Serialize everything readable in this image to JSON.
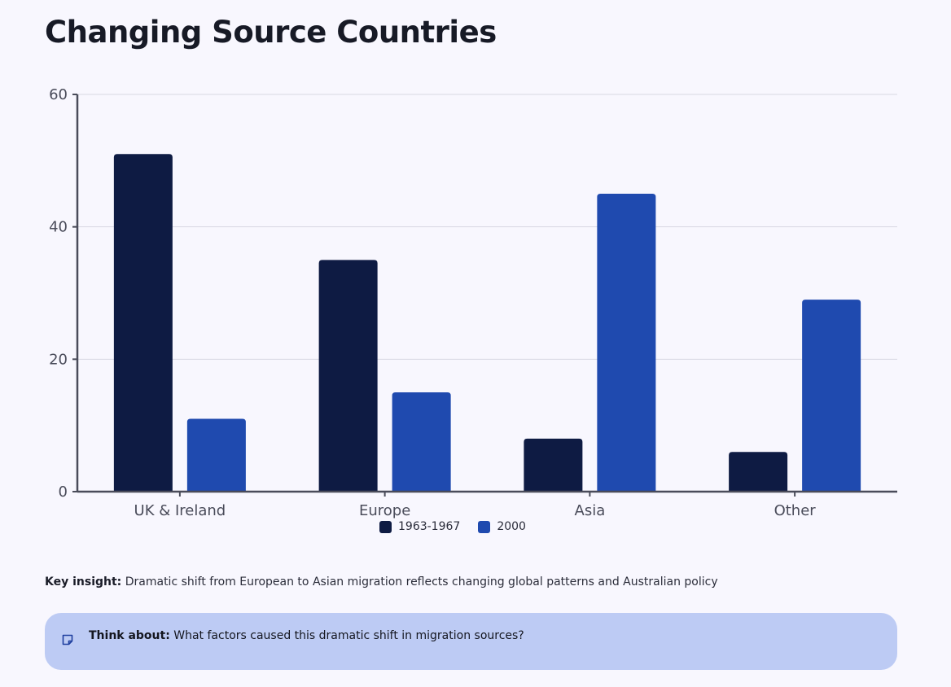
{
  "page": {
    "title": "Changing Source Countries"
  },
  "chart_data": {
    "type": "bar",
    "title": "Changing Source Countries",
    "categories": [
      "UK & Ireland",
      "Europe",
      "Asia",
      "Other"
    ],
    "series": [
      {
        "name": "1963-1967",
        "values": [
          51,
          35,
          8,
          6
        ],
        "color": "#0e1b43"
      },
      {
        "name": "2000",
        "values": [
          11,
          15,
          45,
          29
        ],
        "color": "#1f4aaf"
      }
    ],
    "ylim": [
      0,
      60
    ],
    "yticks": [
      0,
      20,
      40,
      60
    ],
    "xlabel": "",
    "ylabel": "",
    "grid": true,
    "legend_position": "bottom-center"
  },
  "insight": {
    "label": "Key insight:",
    "text": "Dramatic shift from European to Asian migration reflects changing global patterns and Australian policy"
  },
  "think": {
    "icon": "note-icon",
    "label": "Think about:",
    "text": "What factors caused this dramatic shift in migration sources?"
  },
  "colors": {
    "background": "#f8f7fe",
    "think_box": "#bdcbf4",
    "axis": "#4a4c5a",
    "grid": "#d8d8e2"
  }
}
